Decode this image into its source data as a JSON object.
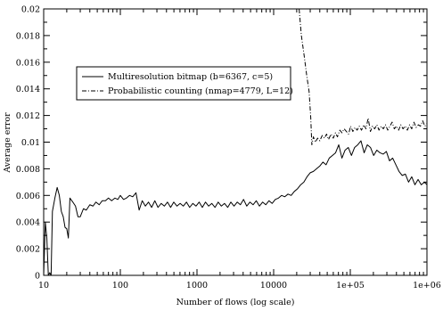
{
  "chart_data": {
    "type": "line",
    "xlabel": "Number of flows (log scale)",
    "ylabel": "Average error",
    "xscale": "log",
    "xlim": [
      10,
      1000000
    ],
    "ylim": [
      0,
      0.02
    ],
    "grid": false,
    "legend_position": "upper-left",
    "x_ticks": [
      10,
      100,
      1000,
      10000,
      100000,
      1000000
    ],
    "x_tick_labels": [
      "10",
      "100",
      "1000",
      "10000",
      "1e+05",
      "1e+06"
    ],
    "y_ticks": [
      0,
      0.002,
      0.004,
      0.006,
      0.008,
      0.01,
      0.012,
      0.014,
      0.016,
      0.018,
      0.02
    ],
    "y_tick_labels": [
      "0",
      "0.002",
      "0.004",
      "0.006",
      "0.008",
      "0.01",
      "0.012",
      "0.014",
      "0.016",
      "0.018",
      "0.02"
    ],
    "series": [
      {
        "name": "Multiresolution bitmap (b=6367, c=5)",
        "style": "solid",
        "color": "#000000",
        "points": [
          [
            10,
            0.0
          ],
          [
            10.5,
            0.004
          ],
          [
            11,
            0.0028
          ],
          [
            11.5,
            0.0
          ],
          [
            12,
            0.0002
          ],
          [
            12.5,
            0.0
          ],
          [
            13,
            0.0048
          ],
          [
            14,
            0.0058
          ],
          [
            15,
            0.0066
          ],
          [
            16,
            0.006
          ],
          [
            17,
            0.0048
          ],
          [
            18,
            0.0044
          ],
          [
            19,
            0.0036
          ],
          [
            20,
            0.0035
          ],
          [
            21,
            0.0028
          ],
          [
            22,
            0.0058
          ],
          [
            24,
            0.0055
          ],
          [
            26,
            0.0052
          ],
          [
            28,
            0.0044
          ],
          [
            30,
            0.0044
          ],
          [
            33,
            0.005
          ],
          [
            36,
            0.0049
          ],
          [
            40,
            0.0053
          ],
          [
            44,
            0.0052
          ],
          [
            48,
            0.0055
          ],
          [
            53,
            0.0053
          ],
          [
            58,
            0.0056
          ],
          [
            64,
            0.0056
          ],
          [
            70,
            0.0058
          ],
          [
            77,
            0.0056
          ],
          [
            85,
            0.0058
          ],
          [
            93,
            0.0057
          ],
          [
            100,
            0.006
          ],
          [
            110,
            0.0057
          ],
          [
            120,
            0.0058
          ],
          [
            132,
            0.006
          ],
          [
            145,
            0.0059
          ],
          [
            160,
            0.0062
          ],
          [
            176,
            0.0049
          ],
          [
            193,
            0.0056
          ],
          [
            212,
            0.0052
          ],
          [
            233,
            0.0055
          ],
          [
            256,
            0.0051
          ],
          [
            282,
            0.0056
          ],
          [
            310,
            0.0051
          ],
          [
            341,
            0.0054
          ],
          [
            375,
            0.0052
          ],
          [
            412,
            0.0055
          ],
          [
            453,
            0.0051
          ],
          [
            498,
            0.0055
          ],
          [
            548,
            0.0052
          ],
          [
            603,
            0.0054
          ],
          [
            663,
            0.0052
          ],
          [
            729,
            0.0055
          ],
          [
            802,
            0.0051
          ],
          [
            882,
            0.0054
          ],
          [
            970,
            0.0052
          ],
          [
            1067,
            0.0055
          ],
          [
            1174,
            0.0051
          ],
          [
            1291,
            0.0055
          ],
          [
            1420,
            0.0052
          ],
          [
            1562,
            0.0054
          ],
          [
            1718,
            0.0051
          ],
          [
            1890,
            0.0055
          ],
          [
            2079,
            0.0052
          ],
          [
            2287,
            0.0054
          ],
          [
            2516,
            0.0051
          ],
          [
            2767,
            0.0055
          ],
          [
            3044,
            0.0052
          ],
          [
            3348,
            0.0055
          ],
          [
            3683,
            0.0053
          ],
          [
            4051,
            0.0057
          ],
          [
            4456,
            0.0052
          ],
          [
            4902,
            0.0055
          ],
          [
            5392,
            0.0053
          ],
          [
            5931,
            0.0056
          ],
          [
            6524,
            0.0052
          ],
          [
            7177,
            0.0055
          ],
          [
            7894,
            0.0053
          ],
          [
            8684,
            0.0056
          ],
          [
            9552,
            0.0054
          ],
          [
            10507,
            0.0057
          ],
          [
            11558,
            0.0058
          ],
          [
            12714,
            0.006
          ],
          [
            13985,
            0.0059
          ],
          [
            15383,
            0.0061
          ],
          [
            16922,
            0.006
          ],
          [
            18614,
            0.0063
          ],
          [
            20476,
            0.0065
          ],
          [
            22523,
            0.0068
          ],
          [
            24776,
            0.007
          ],
          [
            27253,
            0.0074
          ],
          [
            29979,
            0.0077
          ],
          [
            32977,
            0.0078
          ],
          [
            36274,
            0.008
          ],
          [
            39902,
            0.0082
          ],
          [
            43892,
            0.0085
          ],
          [
            48281,
            0.0083
          ],
          [
            53110,
            0.0088
          ],
          [
            58421,
            0.009
          ],
          [
            64263,
            0.0092
          ],
          [
            70689,
            0.0098
          ],
          [
            77758,
            0.0088
          ],
          [
            85534,
            0.0094
          ],
          [
            94087,
            0.0096
          ],
          [
            103496,
            0.009
          ],
          [
            113846,
            0.0096
          ],
          [
            125230,
            0.0098
          ],
          [
            137753,
            0.0101
          ],
          [
            151529,
            0.0092
          ],
          [
            166681,
            0.0098
          ],
          [
            183349,
            0.0096
          ],
          [
            201684,
            0.009
          ],
          [
            221853,
            0.0094
          ],
          [
            244038,
            0.0092
          ],
          [
            268442,
            0.0091
          ],
          [
            295286,
            0.0093
          ],
          [
            324815,
            0.0086
          ],
          [
            357296,
            0.0088
          ],
          [
            393026,
            0.0083
          ],
          [
            432329,
            0.0078
          ],
          [
            475562,
            0.0075
          ],
          [
            523118,
            0.0076
          ],
          [
            575430,
            0.007
          ],
          [
            632973,
            0.0074
          ],
          [
            696270,
            0.0068
          ],
          [
            765897,
            0.0072
          ],
          [
            842487,
            0.0068
          ],
          [
            926735,
            0.007
          ],
          [
            1000000,
            0.0068
          ]
        ]
      },
      {
        "name": "Probabilistic counting (nmap=4779, L=12)",
        "style": "dashdot",
        "color": "#000000",
        "points": [
          [
            21500,
            0.02
          ],
          [
            23000,
            0.018
          ],
          [
            25000,
            0.0165
          ],
          [
            27000,
            0.015
          ],
          [
            29000,
            0.0138
          ],
          [
            30500,
            0.0118
          ],
          [
            31500,
            0.0098
          ],
          [
            33000,
            0.0104
          ],
          [
            35000,
            0.01
          ],
          [
            37500,
            0.0103
          ],
          [
            40000,
            0.0101
          ],
          [
            43000,
            0.0105
          ],
          [
            46000,
            0.0103
          ],
          [
            49000,
            0.0106
          ],
          [
            52000,
            0.0102
          ],
          [
            56000,
            0.0106
          ],
          [
            60000,
            0.0103
          ],
          [
            64000,
            0.0107
          ],
          [
            68000,
            0.0104
          ],
          [
            73000,
            0.0109
          ],
          [
            78000,
            0.0107
          ],
          [
            83000,
            0.011
          ],
          [
            89000,
            0.0108
          ],
          [
            95000,
            0.0106
          ],
          [
            101000,
            0.0112
          ],
          [
            108000,
            0.0108
          ],
          [
            115000,
            0.0111
          ],
          [
            123000,
            0.0109
          ],
          [
            131000,
            0.0112
          ],
          [
            140000,
            0.0109
          ],
          [
            150000,
            0.0113
          ],
          [
            160000,
            0.011
          ],
          [
            171000,
            0.0118
          ],
          [
            183000,
            0.0108
          ],
          [
            195000,
            0.0112
          ],
          [
            208000,
            0.011
          ],
          [
            222000,
            0.0113
          ],
          [
            237000,
            0.0109
          ],
          [
            253000,
            0.0112
          ],
          [
            270000,
            0.011
          ],
          [
            288000,
            0.0113
          ],
          [
            308000,
            0.0109
          ],
          [
            329000,
            0.0112
          ],
          [
            351000,
            0.0115
          ],
          [
            375000,
            0.011
          ],
          [
            400000,
            0.0112
          ],
          [
            427000,
            0.0109
          ],
          [
            456000,
            0.0113
          ],
          [
            487000,
            0.011
          ],
          [
            520000,
            0.0112
          ],
          [
            555000,
            0.0109
          ],
          [
            593000,
            0.0113
          ],
          [
            633000,
            0.011
          ],
          [
            676000,
            0.0115
          ],
          [
            722000,
            0.0111
          ],
          [
            771000,
            0.0113
          ],
          [
            823000,
            0.0112
          ],
          [
            879000,
            0.0116
          ],
          [
            939000,
            0.0112
          ],
          [
            1000000,
            0.0114
          ]
        ]
      }
    ]
  }
}
